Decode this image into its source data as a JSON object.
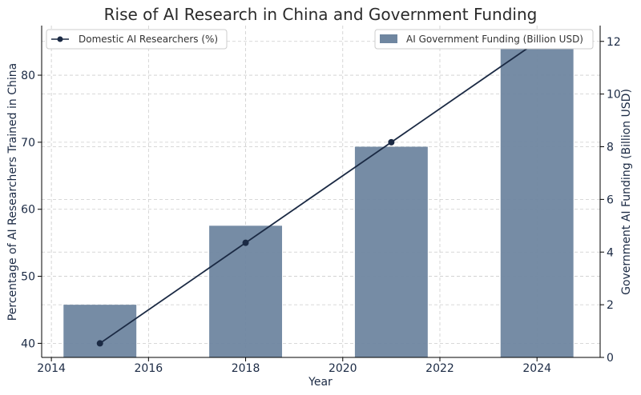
{
  "chart_data": {
    "type": "bar+line",
    "title": "Rise of AI Research in China and Government Funding",
    "xlabel": "Year",
    "ylabel_left": "Percentage of AI Researchers Trained in China",
    "ylabel_right": "Government AI Funding (Billion USD)",
    "x_ticks": [
      2014,
      2016,
      2018,
      2020,
      2022,
      2024
    ],
    "xlim": [
      2013.8,
      2025.3
    ],
    "y_left_ticks": [
      40,
      50,
      60,
      70,
      80
    ],
    "y_left_lim": [
      37.9,
      87.4
    ],
    "y_right_ticks": [
      0,
      2,
      4,
      6,
      8,
      10,
      12
    ],
    "y_right_lim": [
      0,
      12.6
    ],
    "bar_width": 1.5,
    "grid": true,
    "series": [
      {
        "name": "Domestic AI Researchers (%)",
        "kind": "line",
        "axis": "left",
        "color": "#1b2a44",
        "x": [
          2015,
          2018,
          2021,
          2024
        ],
        "values": [
          40,
          55,
          70,
          85
        ]
      },
      {
        "name": "AI Government Funding (Billion USD)",
        "kind": "bar",
        "axis": "right",
        "color": "#6f86a0",
        "x": [
          2015,
          2018,
          2021,
          2024
        ],
        "values": [
          2,
          5,
          8,
          12
        ]
      }
    ],
    "legend_line_position": "top-left",
    "legend_bar_position": "top-right"
  }
}
